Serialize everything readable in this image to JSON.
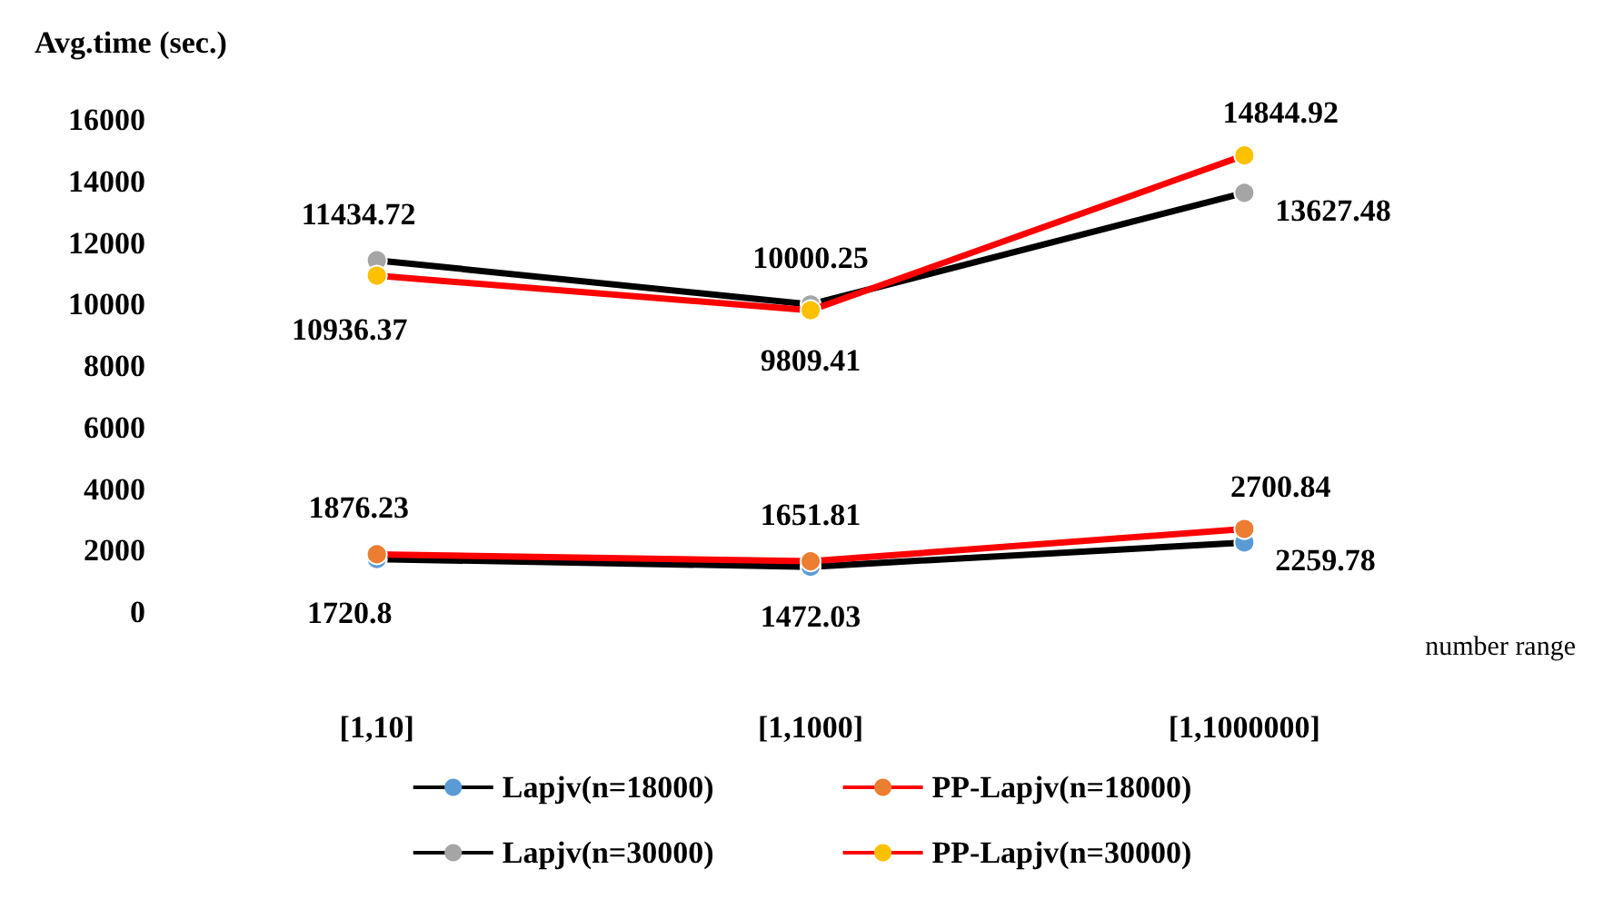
{
  "chart_data": {
    "type": "line",
    "ylabel": "Avg.time (sec.)",
    "xlabel": "number range",
    "categories": [
      "[1,10]",
      "[1,1000]",
      "[1,1000000]"
    ],
    "ylim": [
      0,
      16000
    ],
    "yticks": [
      0,
      2000,
      4000,
      6000,
      8000,
      10000,
      12000,
      14000,
      16000
    ],
    "grid": false,
    "legend": "bottom",
    "marker": "circle",
    "line_style": "solid",
    "data_labels": true,
    "series": [
      {
        "name": "Lapjv(n=18000)",
        "color": "#000000",
        "colors": [
          "#5b9bd5",
          "#5b9bd5",
          "#5b9bd5"
        ],
        "values": [
          1720.8,
          1472.03,
          2259.78
        ]
      },
      {
        "name": "PP-Lapjv(n=18000)",
        "color": "#ff0000",
        "colors": [
          "#ed7d31",
          "#ed7d31",
          "#ed7d31"
        ],
        "values": [
          1876.23,
          1651.81,
          2700.84
        ]
      },
      {
        "name": "Lapjv(n=30000)",
        "color": "#000000",
        "colors": [
          "#a5a5a5",
          "#a5a5a5",
          "#a5a5a5"
        ],
        "values": [
          11434.72,
          10000.25,
          13627.48
        ]
      },
      {
        "name": "PP-Lapjv(n=30000)",
        "color": "#ff0000",
        "colors": [
          "#ffc000",
          "#ffc000",
          "#ffc000"
        ],
        "values": [
          10936.37,
          9809.41,
          14844.92
        ]
      }
    ]
  }
}
